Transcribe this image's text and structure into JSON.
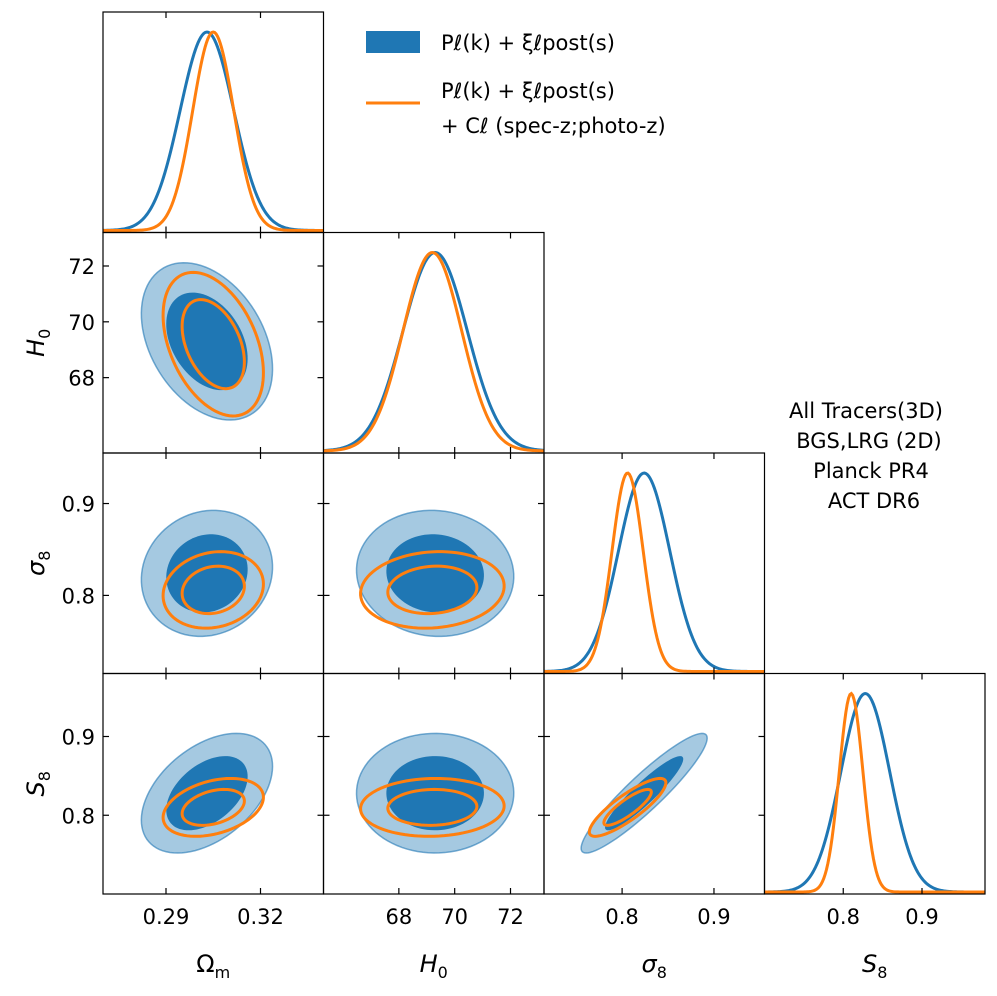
{
  "chart_data": {
    "type": "corner",
    "parameters": [
      {
        "key": "om",
        "label": "Ω",
        "label_sub": "m",
        "italic": false,
        "ticks": [
          0.29,
          0.32
        ],
        "tick_labels": [
          "0.29",
          "0.32"
        ],
        "range": [
          0.27,
          0.34
        ]
      },
      {
        "key": "h0",
        "label": "H",
        "label_sub": "0",
        "italic": true,
        "ticks": [
          68,
          70,
          72
        ],
        "tick_labels": [
          "68",
          "70",
          "72"
        ],
        "range": [
          65.3,
          73.2
        ]
      },
      {
        "key": "s8",
        "label": "σ",
        "label_sub": "8",
        "italic": true,
        "ticks": [
          0.8,
          0.9
        ],
        "tick_labels": [
          "0.8",
          "0.9"
        ],
        "range": [
          0.715,
          0.955
        ]
      },
      {
        "key": "S8",
        "label": "S",
        "label_sub": "8",
        "italic": true,
        "ticks": [
          0.8,
          0.9
        ],
        "tick_labels": [
          "0.8",
          "0.9"
        ],
        "range": [
          0.7,
          0.98
        ]
      }
    ],
    "series": [
      {
        "name": "P_ℓ(k) + ξ_ℓ^post(s)",
        "legend_main": "Pℓ(k) + ξℓpost(s)",
        "color": "#1f77b4",
        "style": "filled",
        "means": {
          "om": 0.303,
          "h0": 69.3,
          "s8": 0.824,
          "S8": 0.828
        },
        "sigmas": {
          "om": 0.0085,
          "h0": 1.15,
          "s8": 0.028,
          "S8": 0.031
        },
        "correlations": {
          "om_h0": -0.35,
          "om_s8": 0.1,
          "om_S8": 0.45,
          "h0_s8": -0.05,
          "h0_S8": 0.0,
          "s8_S8": 0.92
        }
      },
      {
        "name": "P_ℓ(k) + ξ_ℓ^post(s) + C_ℓ (spec-z;photo-z)",
        "legend_main": "Pℓ(k) + ξℓpost(s)",
        "legend_second": "+ Cℓ (spec-z;photo-z)",
        "color": "#ff7f0e",
        "style": "line",
        "means": {
          "om": 0.305,
          "h0": 69.2,
          "s8": 0.806,
          "S8": 0.81
        },
        "sigmas": {
          "om": 0.0065,
          "h0": 1.05,
          "s8": 0.017,
          "S8": 0.015
        },
        "correlations": {
          "om_h0": -0.4,
          "om_s8": 0.15,
          "om_S8": 0.35,
          "h0_s8": 0.1,
          "h0_S8": 0.05,
          "s8_S8": 0.85
        }
      }
    ],
    "contour_levels": [
      "68%",
      "95%"
    ],
    "annotation": [
      "All Tracers(3D)",
      "BGS,LRG (2D)",
      "Planck PR4",
      "ACT DR6"
    ],
    "legend_location": "top-right"
  }
}
